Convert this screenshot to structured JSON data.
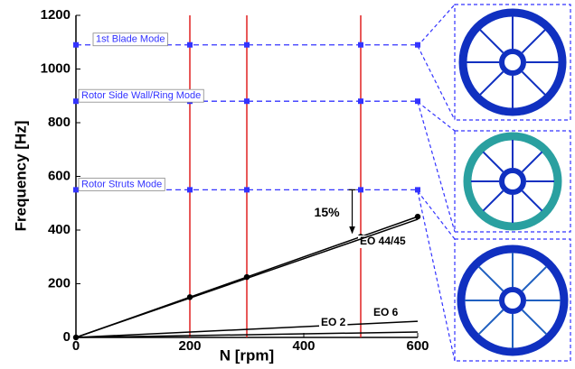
{
  "chart_data": {
    "type": "line",
    "xlabel": "N [rpm]",
    "ylabel": "Frequency [Hz]",
    "xlim": [
      0,
      600
    ],
    "ylim": [
      0,
      1200
    ],
    "xticks": [
      0,
      200,
      400,
      600
    ],
    "yticks": [
      0,
      200,
      400,
      600,
      800,
      1000,
      1200
    ],
    "vlines": {
      "x": [
        200,
        300,
        500
      ],
      "color": "#e02020"
    },
    "series": [
      {
        "name": "1st Blade Mode",
        "color": "#3333ff",
        "style": "dashed",
        "marker": "square",
        "x": [
          0,
          200,
          300,
          500,
          600
        ],
        "values": [
          1090,
          1090,
          1090,
          1090,
          1090
        ]
      },
      {
        "name": "Rotor Side Wall/Ring Mode",
        "color": "#3333ff",
        "style": "dashed",
        "marker": "square",
        "x": [
          0,
          200,
          300,
          500,
          600
        ],
        "values": [
          880,
          880,
          880,
          880,
          880
        ]
      },
      {
        "name": "Rotor Struts Mode",
        "color": "#3333ff",
        "style": "dashed",
        "marker": "square",
        "x": [
          0,
          200,
          300,
          500,
          600
        ],
        "values": [
          550,
          550,
          550,
          550,
          550
        ]
      },
      {
        "name": "EO 44/45",
        "color": "#000000",
        "style": "solid",
        "marker": "circle",
        "x": [
          0,
          200,
          300,
          500,
          600
        ],
        "values": [
          0,
          150,
          225,
          375,
          450
        ]
      },
      {
        "color": "#000000",
        "style": "solid",
        "marker": "none",
        "x": [
          0,
          600
        ],
        "values": [
          0,
          440
        ]
      },
      {
        "name": "EO 6",
        "color": "#000000",
        "style": "solid",
        "marker": "none",
        "x": [
          0,
          600
        ],
        "values": [
          0,
          60
        ]
      },
      {
        "name": "EO 2",
        "color": "#000000",
        "style": "solid",
        "marker": "none",
        "x": [
          0,
          600
        ],
        "values": [
          0,
          20
        ]
      }
    ],
    "annotation": {
      "text": "15%"
    }
  }
}
